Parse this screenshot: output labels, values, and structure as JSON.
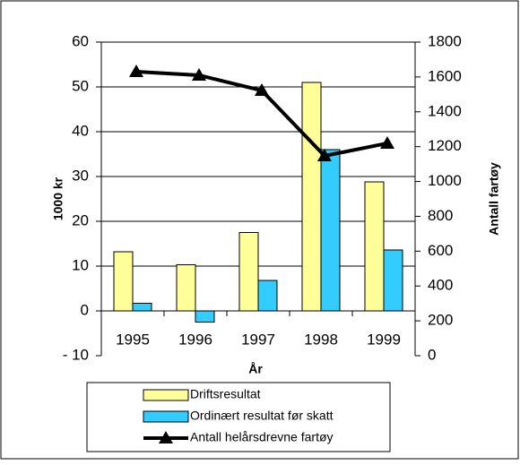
{
  "chart_data": {
    "type": "bar",
    "categories": [
      "1995",
      "1996",
      "1997",
      "1998",
      "1999"
    ],
    "series": [
      {
        "name": "Driftsresultat",
        "color": "#ffff99",
        "values": [
          13.2,
          10.3,
          17.5,
          51,
          28.8
        ]
      },
      {
        "name": "Ordinært resultat før skatt",
        "color": "#33ccff",
        "values": [
          1.7,
          -2.5,
          6.8,
          36,
          13.6
        ]
      },
      {
        "name": "Antall helårsdrevne fartøy",
        "color": "#000000",
        "type": "line",
        "axis": "y2",
        "values": [
          1630,
          1610,
          1522,
          1147,
          1219
        ]
      }
    ],
    "x_label": "År",
    "y_label": "1000 kr",
    "y2_label": "Antall fartøy",
    "ylim": [
      -10,
      60
    ],
    "yticks": [
      {
        "value": -10,
        "label": "- 10"
      },
      0,
      10,
      20,
      30,
      40,
      50,
      60
    ],
    "y2lim": [
      0,
      1800
    ],
    "y2ticks": [
      0,
      200,
      400,
      600,
      800,
      1000,
      1200,
      1400,
      1600,
      1800
    ],
    "grid": true,
    "legend": "bottom"
  }
}
